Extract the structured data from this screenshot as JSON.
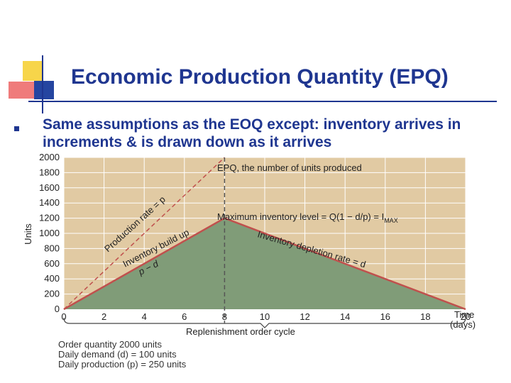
{
  "slide": {
    "title": "Economic Production Quantity (EPQ)",
    "bullet": "Same assumptions as the EOQ except: inventory arrives in increments & is drawn down as it arrives"
  },
  "chart_data": {
    "type": "line",
    "ylabel": "Units",
    "xlabel": "Time (days)",
    "x_ticks": [
      0,
      2,
      4,
      6,
      8,
      10,
      12,
      14,
      16,
      18,
      20
    ],
    "y_ticks": [
      0,
      200,
      400,
      600,
      800,
      1000,
      1200,
      1400,
      1600,
      1800,
      2000
    ],
    "xlim": [
      0,
      20
    ],
    "ylim": [
      0,
      2000
    ],
    "grid": true,
    "series": [
      {
        "name": "Production rate = p",
        "points": [
          [
            0,
            0
          ],
          [
            8,
            2000
          ]
        ],
        "style": "dashed"
      },
      {
        "name": "Inventory level",
        "points": [
          [
            0,
            0
          ],
          [
            8,
            1200
          ],
          [
            20,
            0
          ]
        ],
        "style": "solid"
      }
    ],
    "annotations": {
      "epq": "EPQ, the number of units produced",
      "max_inventory": "Maximum inventory level = Q(1 − d/p) = I",
      "max_inventory_sub": "MAX",
      "production_rate": "Production rate = p",
      "build_up": "Inventory build up",
      "p_minus_d": "p − d",
      "depletion": "Inventory depletion rate = d",
      "cycle": "Replenishment order cycle",
      "time_label_1": "Time",
      "time_label_2": "(days)"
    },
    "notes": [
      "Order quantity 2000 units",
      "Daily demand (d) = 100 units",
      "Daily production (p) = 250 units"
    ],
    "colors": {
      "plot_bg": "#e1caa3",
      "area_fill": "#809c78",
      "line": "#c0504d",
      "grid": "#ffffff"
    }
  }
}
